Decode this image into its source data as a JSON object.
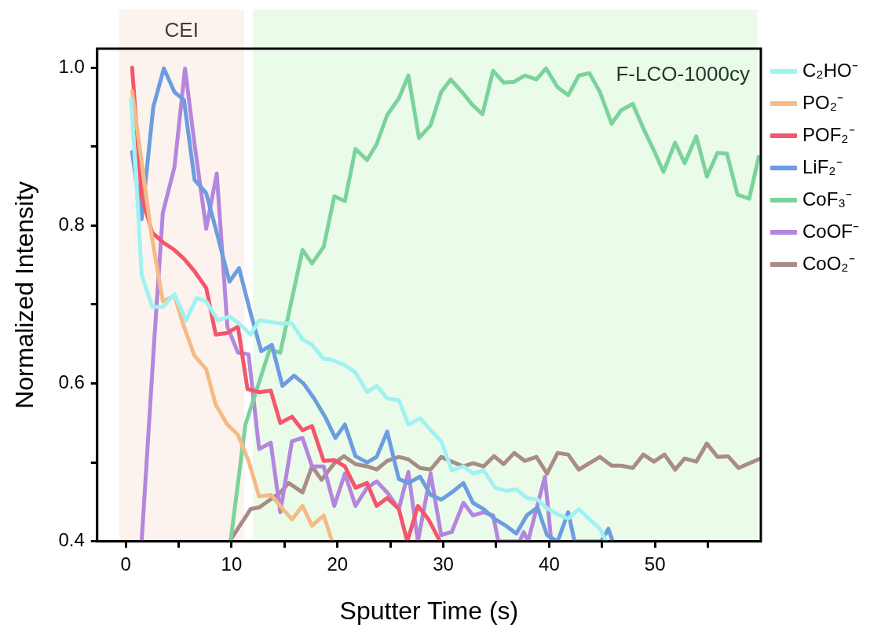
{
  "chart_data": {
    "type": "line",
    "xlabel": "Sputter Time (s)",
    "ylabel": "Normalized Intensity",
    "xlim": [
      -2.7,
      60
    ],
    "ylim": [
      0.4,
      1.024
    ],
    "xticks": [
      0,
      {
        "value": 5,
        "label": null
      },
      10,
      {
        "value": 15,
        "label": null
      },
      20,
      {
        "value": 25,
        "label": null
      },
      30,
      {
        "value": 35,
        "label": null
      },
      40,
      {
        "value": 45,
        "label": null
      },
      50,
      {
        "value": 55,
        "label": null
      }
    ],
    "yticks": [
      {
        "value": 0.4,
        "label": "0.4"
      },
      {
        "value": 0.5,
        "label": null
      },
      {
        "value": 0.6,
        "label": "0.6"
      },
      {
        "value": 0.7,
        "label": null
      },
      {
        "value": 0.8,
        "label": "0.8"
      },
      {
        "value": 0.9,
        "label": null
      },
      {
        "value": 1.0,
        "label": "1.0"
      }
    ],
    "grid": false,
    "legend": "right",
    "marker": "none",
    "line_style": "solid",
    "annotations": [
      "F-LCO-1000cy"
    ],
    "bands": [
      {
        "axis": "x",
        "from": -0.65,
        "to": 11.2,
        "label": "CEI",
        "color": "#fdf3ee"
      },
      {
        "axis": "x",
        "from": 12.0,
        "to": 59.7,
        "color": "#ebfbea"
      }
    ],
    "series": [
      {
        "name": "C₂HO⁻",
        "color": "#a0f2f2",
        "x": [
          0.5,
          1.1,
          1.5,
          2.5,
          3.5,
          4.6,
          5.7,
          6.7,
          7.6,
          8.7,
          9.8,
          10.7,
          11.8,
          12.6,
          14.6,
          15.7,
          16.7,
          17.6,
          18.7,
          19.2,
          20.6,
          21.7,
          22.8,
          23.7,
          24.7,
          25.8,
          26.7,
          27.8,
          28.8,
          29.8,
          30.8,
          31.9,
          32.8,
          33.8,
          34.9,
          35.9,
          36.9,
          37.9,
          38.9,
          39.9,
          41,
          41.8,
          42.8,
          43.8,
          44.8,
          45.4
        ],
        "values": [
          0.96,
          0.833,
          0.738,
          0.697,
          0.697,
          0.713,
          0.68,
          0.708,
          0.704,
          0.68,
          0.685,
          0.676,
          0.662,
          0.68,
          0.676,
          0.676,
          0.656,
          0.649,
          0.631,
          0.631,
          0.624,
          0.614,
          0.589,
          0.597,
          0.581,
          0.579,
          0.548,
          0.556,
          0.541,
          0.527,
          0.49,
          0.495,
          0.486,
          0.49,
          0.468,
          0.464,
          0.466,
          0.455,
          0.453,
          0.441,
          0.433,
          0.429,
          0.441,
          0.428,
          0.416,
          0.4
        ]
      },
      {
        "name": "PO₂⁻",
        "color": "#f5bb86",
        "x": [
          0.6,
          2.4,
          3.5,
          4.6,
          5.5,
          6.5,
          7.6,
          8.5,
          9.6,
          10.6,
          11.6,
          12.6,
          13.7,
          14.6,
          15.7,
          16.7,
          17.6,
          18.7,
          19.5
        ],
        "values": [
          0.97,
          0.791,
          0.704,
          0.711,
          0.672,
          0.635,
          0.618,
          0.573,
          0.548,
          0.535,
          0.502,
          0.457,
          0.459,
          0.445,
          0.428,
          0.445,
          0.42,
          0.433,
          0.4
        ]
      },
      {
        "name": "POF₂⁻",
        "color": "#f4566c",
        "x": [
          0.6,
          1.5,
          2.5,
          3.5,
          4.6,
          5.5,
          6.5,
          7.6,
          8.5,
          9.6,
          10.6,
          11.5,
          12.6,
          13.7,
          14.6,
          15.7,
          16.7,
          17.6,
          18.7,
          19.7,
          20.7,
          21.7,
          22.8,
          23.7,
          24.7,
          25.8,
          26.6,
          27.6,
          28.6,
          29.7
        ],
        "values": [
          1.0,
          0.837,
          0.791,
          0.779,
          0.769,
          0.758,
          0.742,
          0.721,
          0.662,
          0.664,
          0.672,
          0.593,
          0.589,
          0.591,
          0.55,
          0.558,
          0.541,
          0.546,
          0.502,
          0.503,
          0.495,
          0.468,
          0.474,
          0.445,
          0.455,
          0.441,
          0.4,
          0.445,
          0.428,
          0.4
        ]
      },
      {
        "name": "LiF₂⁻",
        "color": "#6b9de0",
        "x": [
          0.6,
          1.5,
          2.6,
          3.6,
          4.6,
          5.5,
          6.5,
          7.6,
          8.5,
          9.8,
          10.7,
          11.8,
          12.8,
          13.8,
          14.8,
          15.9,
          16.8,
          17.8,
          18.9,
          19.8,
          20.7,
          21.7,
          22.8,
          23.7,
          24.7,
          25.8,
          26.7,
          27.8,
          28.8,
          29.8,
          30.8,
          31.9,
          32.8,
          33.8,
          34.9,
          35.9,
          36.9,
          37.9,
          38.9,
          39.8,
          40.8,
          41.8,
          42.4,
          44.9,
          45.6,
          46
        ],
        "values": [
          0.893,
          0.808,
          0.95,
          0.999,
          0.969,
          0.959,
          0.858,
          0.841,
          0.796,
          0.729,
          0.746,
          0.689,
          0.641,
          0.649,
          0.597,
          0.61,
          0.6,
          0.581,
          0.556,
          0.531,
          0.548,
          0.508,
          0.5,
          0.507,
          0.539,
          0.479,
          0.474,
          0.482,
          0.459,
          0.453,
          0.462,
          0.474,
          0.449,
          0.441,
          0.428,
          0.42,
          0.41,
          0.433,
          0.443,
          0.408,
          0.4,
          0.437,
          0.4,
          0.4,
          0.416,
          0.4
        ]
      },
      {
        "name": "CoF₃⁻",
        "color": "#7bd39c",
        "x": [
          9.9,
          11.3,
          13.6,
          14.6,
          16.7,
          17.6,
          18.7,
          19.7,
          20.7,
          21.7,
          22.8,
          23.7,
          24.7,
          25.8,
          26.7,
          27.7,
          28.8,
          29.8,
          30.7,
          31.9,
          32.8,
          33.7,
          34.7,
          35.7,
          36.7,
          37.7,
          38.8,
          39.7,
          40.8,
          41.8,
          42.8,
          43.8,
          44.8,
          45.9,
          46.8,
          47.9,
          48.9,
          49.9,
          50.8,
          51.9,
          52.8,
          53.9,
          54.9,
          55.9,
          56.8,
          57.8,
          58.9,
          59.8
        ],
        "values": [
          0.4,
          0.548,
          0.643,
          0.639,
          0.769,
          0.752,
          0.773,
          0.837,
          0.831,
          0.897,
          0.883,
          0.903,
          0.94,
          0.961,
          0.99,
          0.911,
          0.927,
          0.969,
          0.985,
          0.967,
          0.952,
          0.941,
          0.996,
          0.981,
          0.982,
          0.99,
          0.985,
          0.999,
          0.975,
          0.965,
          0.99,
          0.993,
          0.969,
          0.929,
          0.946,
          0.954,
          0.923,
          0.895,
          0.868,
          0.905,
          0.879,
          0.913,
          0.862,
          0.892,
          0.891,
          0.839,
          0.834,
          0.887
        ]
      },
      {
        "name": "CoOF⁻",
        "color": "#b486dd",
        "x": [
          1.5,
          2.7,
          3.5,
          4.6,
          5.6,
          6.5,
          7.6,
          8.6,
          9.6,
          10.6,
          11.6,
          12.6,
          13.7,
          14.6,
          15.7,
          16.7,
          17.6,
          18.7,
          19.7,
          20.7,
          21.7,
          22.8,
          23.7,
          24.7,
          25.8,
          26.7,
          27.6,
          28.8,
          29.8,
          30.8,
          31.9,
          32.8,
          33.8,
          34.7,
          35.2,
          37.2,
          37.6,
          38,
          39.6,
          40.2
        ],
        "values": [
          0.4,
          0.656,
          0.816,
          0.874,
          0.999,
          0.903,
          0.796,
          0.866,
          0.672,
          0.639,
          0.637,
          0.517,
          0.525,
          0.437,
          0.527,
          0.531,
          0.495,
          0.495,
          0.445,
          0.486,
          0.445,
          0.468,
          0.476,
          0.462,
          0.441,
          0.488,
          0.4,
          0.486,
          0.408,
          0.412,
          0.449,
          0.433,
          0.437,
          0.433,
          0.4,
          0.4,
          0.412,
          0.4,
          0.482,
          0.4
        ]
      },
      {
        "name": "CoO₂⁻",
        "color": "#a98c84",
        "x": [
          9.8,
          11.8,
          12.6,
          14.6,
          15.4,
          16.7,
          17.6,
          18.5,
          19.7,
          20.6,
          21.7,
          22.8,
          23.7,
          24.7,
          25.8,
          26.7,
          27.8,
          28.8,
          29.8,
          30.8,
          31.9,
          32.8,
          33.8,
          34.8,
          35.7,
          36.7,
          37.7,
          38.8,
          39.8,
          40.8,
          41.8,
          42.8,
          43.8,
          44.8,
          45.9,
          46.8,
          47.9,
          48.9,
          49.9,
          50.9,
          51.9,
          52.8,
          53.9,
          54.9,
          55.9,
          56.9,
          57.9,
          58.9,
          60
        ],
        "values": [
          0.4,
          0.441,
          0.443,
          0.462,
          0.474,
          0.462,
          0.495,
          0.478,
          0.499,
          0.508,
          0.498,
          0.495,
          0.491,
          0.502,
          0.507,
          0.504,
          0.493,
          0.491,
          0.507,
          0.501,
          0.495,
          0.499,
          0.495,
          0.508,
          0.498,
          0.512,
          0.502,
          0.507,
          0.486,
          0.512,
          0.51,
          0.491,
          0.499,
          0.507,
          0.496,
          0.496,
          0.493,
          0.51,
          0.501,
          0.51,
          0.491,
          0.505,
          0.501,
          0.524,
          0.507,
          0.508,
          0.493,
          0.499,
          0.505
        ]
      }
    ]
  }
}
